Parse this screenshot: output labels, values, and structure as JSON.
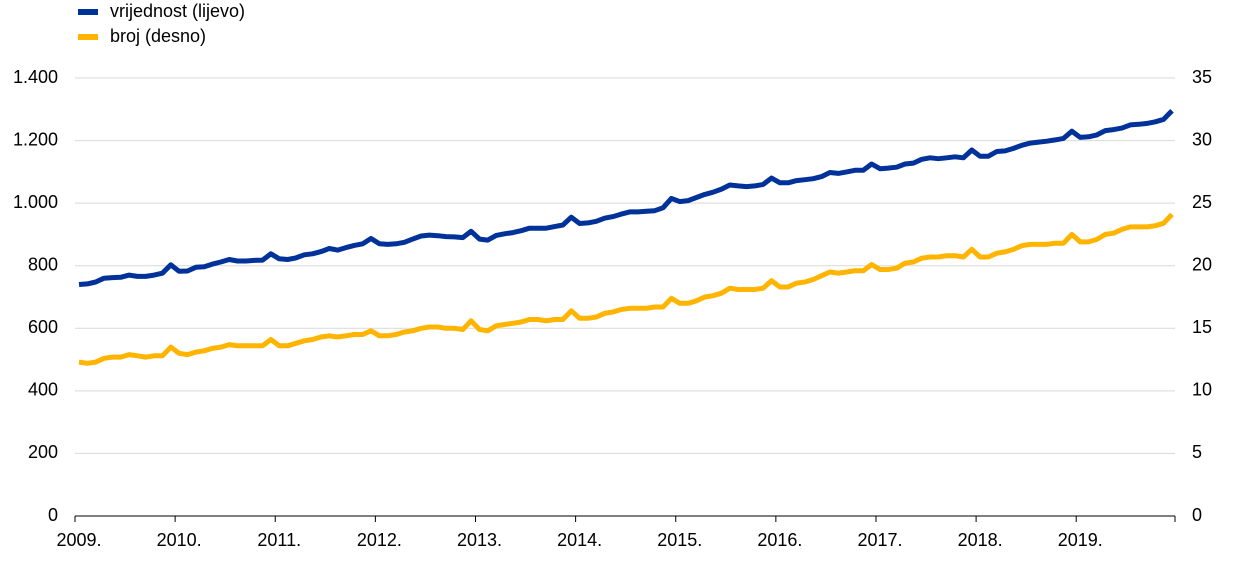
{
  "chart_data": {
    "type": "line",
    "categories": [
      "2009.",
      null,
      null,
      null,
      null,
      null,
      null,
      null,
      null,
      null,
      null,
      null,
      "2010.",
      null,
      null,
      null,
      null,
      null,
      null,
      null,
      null,
      null,
      null,
      null,
      "2011.",
      null,
      null,
      null,
      null,
      null,
      null,
      null,
      null,
      null,
      null,
      null,
      "2012.",
      null,
      null,
      null,
      null,
      null,
      null,
      null,
      null,
      null,
      null,
      null,
      "2013.",
      null,
      null,
      null,
      null,
      null,
      null,
      null,
      null,
      null,
      null,
      null,
      "2014.",
      null,
      null,
      null,
      null,
      null,
      null,
      null,
      null,
      null,
      null,
      null,
      "2015.",
      null,
      null,
      null,
      null,
      null,
      null,
      null,
      null,
      null,
      null,
      null,
      "2016.",
      null,
      null,
      null,
      null,
      null,
      null,
      null,
      null,
      null,
      null,
      null,
      "2017.",
      null,
      null,
      null,
      null,
      null,
      null,
      null,
      null,
      null,
      null,
      null,
      "2018.",
      null,
      null,
      null,
      null,
      null,
      null,
      null,
      null,
      null,
      null,
      null,
      "2019.",
      null,
      null,
      null,
      null,
      null,
      null,
      null,
      null,
      null,
      null,
      null
    ],
    "series": [
      {
        "name": "vrijednost (lijevo)",
        "color": "#003299",
        "values": [
          740,
          742,
          748,
          760,
          762,
          763,
          770,
          766,
          766,
          770,
          776,
          803,
          782,
          783,
          795,
          797,
          805,
          812,
          820,
          815,
          815,
          817,
          818,
          838,
          822,
          820,
          825,
          835,
          838,
          845,
          855,
          850,
          858,
          865,
          870,
          887,
          870,
          868,
          870,
          875,
          885,
          895,
          898,
          896,
          893,
          892,
          890,
          910,
          885,
          882,
          897,
          902,
          906,
          912,
          920,
          920,
          920,
          925,
          930,
          955,
          935,
          937,
          942,
          952,
          957,
          965,
          972,
          972,
          974,
          976,
          985,
          1015,
          1005,
          1008,
          1018,
          1028,
          1035,
          1045,
          1058,
          1055,
          1053,
          1055,
          1060,
          1080,
          1065,
          1065,
          1072,
          1075,
          1078,
          1085,
          1098,
          1095,
          1100,
          1105,
          1105,
          1125,
          1110,
          1112,
          1115,
          1125,
          1128,
          1140,
          1145,
          1142,
          1145,
          1148,
          1145,
          1170,
          1150,
          1150,
          1165,
          1167,
          1175,
          1185,
          1192,
          1195,
          1198,
          1202,
          1207,
          1230,
          1210,
          1212,
          1218,
          1232,
          1235,
          1240,
          1250,
          1252,
          1255,
          1260,
          1268,
          1295
        ]
      },
      {
        "name": "broj (desno)",
        "color": "#ffb400",
        "axis": "y2",
        "values": [
          12.3,
          12.2,
          12.3,
          12.6,
          12.7,
          12.7,
          12.9,
          12.8,
          12.7,
          12.8,
          12.8,
          13.5,
          13.0,
          12.9,
          13.1,
          13.2,
          13.4,
          13.5,
          13.7,
          13.6,
          13.6,
          13.6,
          13.6,
          14.1,
          13.6,
          13.6,
          13.8,
          14.0,
          14.1,
          14.3,
          14.4,
          14.3,
          14.4,
          14.5,
          14.5,
          14.8,
          14.4,
          14.4,
          14.5,
          14.7,
          14.8,
          15.0,
          15.1,
          15.1,
          15.0,
          15.0,
          14.9,
          15.6,
          14.9,
          14.8,
          15.2,
          15.3,
          15.4,
          15.5,
          15.7,
          15.7,
          15.6,
          15.7,
          15.7,
          16.4,
          15.8,
          15.8,
          15.9,
          16.2,
          16.3,
          16.5,
          16.6,
          16.6,
          16.6,
          16.7,
          16.7,
          17.4,
          17.0,
          17.0,
          17.2,
          17.5,
          17.6,
          17.8,
          18.2,
          18.1,
          18.1,
          18.1,
          18.2,
          18.8,
          18.3,
          18.3,
          18.6,
          18.7,
          18.9,
          19.2,
          19.5,
          19.4,
          19.5,
          19.6,
          19.6,
          20.1,
          19.7,
          19.7,
          19.8,
          20.2,
          20.3,
          20.6,
          20.7,
          20.7,
          20.8,
          20.8,
          20.7,
          21.3,
          20.7,
          20.7,
          21.0,
          21.1,
          21.3,
          21.6,
          21.7,
          21.7,
          21.7,
          21.8,
          21.8,
          22.5,
          21.9,
          21.9,
          22.1,
          22.5,
          22.6,
          22.9,
          23.1,
          23.1,
          23.1,
          23.2,
          23.4,
          24.1
        ]
      }
    ],
    "ylim": [
      0,
      1400
    ],
    "yticks": [
      0,
      200,
      400,
      600,
      800,
      {
        "value": 1000,
        "label": "1.000"
      },
      {
        "value": 1200,
        "label": "1.200"
      },
      {
        "value": 1400,
        "label": "1.400"
      }
    ],
    "y2lim": [
      0,
      35
    ],
    "y2ticks": [
      0,
      5,
      10,
      15,
      20,
      25,
      30,
      35
    ],
    "grid": true,
    "legend": "top-left"
  }
}
